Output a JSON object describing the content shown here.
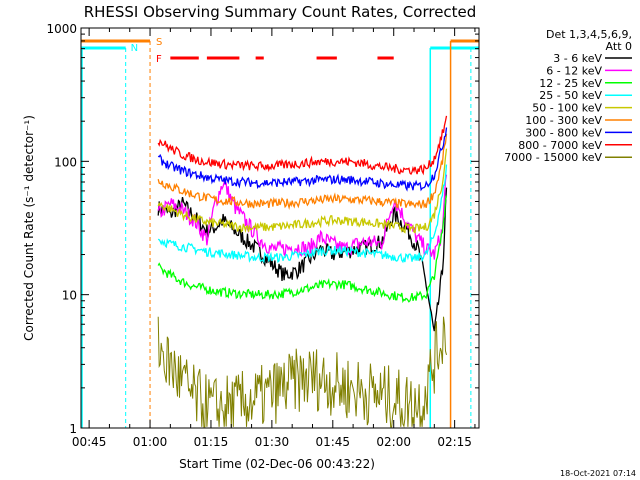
{
  "chart_data": {
    "type": "line",
    "title": "RHESSI Observing Summary Count Rates, Corrected",
    "xlabel": "Start Time (02-Dec-06 00:43:22)",
    "ylabel": "Corrected Count Rate (s⁻¹ detector⁻¹)",
    "ylog": true,
    "ylim": [
      1,
      1000
    ],
    "xlim": [
      "00:43",
      "02:21"
    ],
    "x_ticks": [
      "00:45",
      "01:00",
      "01:15",
      "01:30",
      "01:45",
      "02:00",
      "02:15"
    ],
    "y_ticks": [
      "1",
      "10",
      "100",
      "1000"
    ],
    "timestamp": "18-Oct-2021 07:14",
    "legend": {
      "header": [
        "Det 1,3,4,5,6,9,",
        "Att 0"
      ],
      "placement": "right"
    },
    "flags": [
      {
        "label": "S",
        "color": "#ff7f00"
      },
      {
        "label": "N",
        "color": "#00ffff"
      },
      {
        "label": "F",
        "color": "#ff0000"
      }
    ],
    "series": [
      {
        "name": "3 - 6 keV",
        "color": "#000000",
        "x": [
          "01:02",
          "01:05",
          "01:08",
          "01:11",
          "01:14",
          "01:16",
          "01:18",
          "01:21",
          "01:24",
          "01:27",
          "01:30",
          "01:33",
          "01:36",
          "01:39",
          "01:42",
          "01:45",
          "01:48",
          "01:51",
          "01:54",
          "01:57",
          "02:00",
          "02:03",
          "02:06",
          "02:08",
          "02:10",
          "02:12",
          "02:13"
        ],
        "y": [
          45,
          40,
          48,
          38,
          30,
          32,
          36,
          30,
          25,
          21,
          17,
          14,
          15,
          18,
          22,
          20,
          21,
          22,
          23,
          25,
          40,
          32,
          22,
          12,
          5,
          15,
          60
        ]
      },
      {
        "name": "6 - 12 keV",
        "color": "#ff00ff",
        "x": [
          "01:02",
          "01:05",
          "01:08",
          "01:11",
          "01:14",
          "01:16",
          "01:18",
          "01:21",
          "01:24",
          "01:27",
          "01:30",
          "01:33",
          "01:36",
          "01:39",
          "01:42",
          "01:45",
          "01:48",
          "01:51",
          "01:54",
          "01:57",
          "02:00",
          "02:03",
          "02:06",
          "02:08",
          "02:10",
          "02:12",
          "02:13"
        ],
        "y": [
          40,
          48,
          43,
          36,
          26,
          48,
          70,
          45,
          34,
          26,
          22,
          22,
          23,
          22,
          27,
          24,
          22,
          24,
          25,
          24,
          52,
          36,
          26,
          22,
          20,
          30,
          90
        ]
      },
      {
        "name": "12 - 25 keV",
        "color": "#00ff00",
        "x": [
          "01:02",
          "01:05",
          "01:08",
          "01:11",
          "01:14",
          "01:17",
          "01:20",
          "01:23",
          "01:26",
          "01:29",
          "01:32",
          "01:35",
          "01:38",
          "01:41",
          "01:44",
          "01:47",
          "01:50",
          "01:53",
          "01:56",
          "01:59",
          "02:02",
          "02:05",
          "02:08",
          "02:10",
          "02:12",
          "02:13"
        ],
        "y": [
          16,
          14,
          12.5,
          11.5,
          11,
          10.5,
          10.3,
          10.1,
          10,
          10,
          10.1,
          10.5,
          11,
          11.5,
          12,
          12,
          11.6,
          11,
          10.5,
          10,
          9.6,
          9.5,
          10,
          14,
          30,
          60
        ]
      },
      {
        "name": "25 - 50 keV",
        "color": "#00ffff",
        "x": [
          "01:02",
          "01:05",
          "01:08",
          "01:11",
          "01:14",
          "01:17",
          "01:20",
          "01:23",
          "01:26",
          "01:29",
          "01:32",
          "01:35",
          "01:38",
          "01:41",
          "01:44",
          "01:47",
          "01:50",
          "01:53",
          "01:56",
          "01:59",
          "02:02",
          "02:05",
          "02:08",
          "02:10",
          "02:12",
          "02:13"
        ],
        "y": [
          26,
          24,
          23,
          22,
          21,
          20.5,
          20,
          19.5,
          19,
          19,
          19,
          19.5,
          20,
          21,
          21.5,
          21.5,
          21,
          20.5,
          20,
          19.5,
          19,
          18.5,
          20,
          28,
          55,
          90
        ]
      },
      {
        "name": "50 - 100 keV",
        "color": "#c8c800",
        "x": [
          "01:02",
          "01:05",
          "01:08",
          "01:11",
          "01:14",
          "01:17",
          "01:20",
          "01:23",
          "01:26",
          "01:29",
          "01:32",
          "01:35",
          "01:38",
          "01:41",
          "01:44",
          "01:47",
          "01:50",
          "01:53",
          "01:56",
          "01:59",
          "02:02",
          "02:05",
          "02:08",
          "02:10",
          "02:12",
          "02:13"
        ],
        "y": [
          48,
          44,
          40,
          37,
          35,
          34,
          33,
          32,
          32,
          32,
          32.5,
          33,
          34,
          35,
          36,
          36,
          35.5,
          35,
          34,
          33,
          32,
          31,
          32,
          40,
          70,
          120
        ]
      },
      {
        "name": "100 - 300 keV",
        "color": "#ff8000",
        "x": [
          "01:02",
          "01:05",
          "01:08",
          "01:11",
          "01:14",
          "01:17",
          "01:20",
          "01:23",
          "01:26",
          "01:29",
          "01:32",
          "01:35",
          "01:38",
          "01:41",
          "01:44",
          "01:47",
          "01:50",
          "01:53",
          "01:56",
          "01:59",
          "02:02",
          "02:05",
          "02:08",
          "02:10",
          "02:12",
          "02:13"
        ],
        "y": [
          72,
          65,
          60,
          56,
          53,
          51,
          50,
          49,
          48,
          48,
          48.5,
          49,
          50,
          51,
          52,
          52,
          51.5,
          51,
          50,
          49,
          48,
          47,
          48,
          58,
          100,
          160
        ]
      },
      {
        "name": "300 - 800 keV",
        "color": "#0000ff",
        "x": [
          "01:02",
          "01:05",
          "01:08",
          "01:11",
          "01:14",
          "01:17",
          "01:20",
          "01:23",
          "01:26",
          "01:29",
          "01:32",
          "01:35",
          "01:38",
          "01:41",
          "01:44",
          "01:47",
          "01:50",
          "01:53",
          "01:56",
          "01:59",
          "02:02",
          "02:05",
          "02:08",
          "02:10",
          "02:12",
          "02:13"
        ],
        "y": [
          105,
          92,
          85,
          80,
          76,
          73,
          71,
          70,
          69,
          69,
          69.5,
          70,
          71,
          72,
          73,
          73,
          72.5,
          71,
          69,
          67,
          66,
          65,
          66,
          80,
          130,
          180
        ]
      },
      {
        "name": "800 - 7000 keV",
        "color": "#ff0000",
        "x": [
          "01:02",
          "01:05",
          "01:08",
          "01:11",
          "01:14",
          "01:17",
          "01:20",
          "01:23",
          "01:26",
          "01:29",
          "01:32",
          "01:35",
          "01:38",
          "01:41",
          "01:44",
          "01:47",
          "01:50",
          "01:53",
          "01:56",
          "01:59",
          "02:02",
          "02:05",
          "02:08",
          "02:10",
          "02:12",
          "02:13"
        ],
        "y": [
          145,
          125,
          112,
          104,
          99,
          96,
          94,
          93,
          92,
          92,
          93,
          95,
          97,
          99,
          100,
          100,
          99,
          96,
          92,
          89,
          87,
          86,
          88,
          105,
          160,
          210
        ]
      },
      {
        "name": "7000 - 15000 keV",
        "color": "#808000",
        "x": [
          "01:02",
          "01:04",
          "01:06",
          "01:08",
          "01:10",
          "01:13",
          "01:16",
          "01:19",
          "01:22",
          "01:25",
          "01:28",
          "01:31",
          "01:34",
          "01:37",
          "01:40",
          "01:43",
          "01:46",
          "01:49",
          "01:52",
          "01:55",
          "01:58",
          "02:01",
          "02:04",
          "02:07",
          "02:09",
          "02:11",
          "02:13"
        ],
        "y": [
          4.2,
          3.2,
          2.7,
          2.2,
          1.8,
          1.5,
          1.4,
          1.45,
          1.5,
          1.6,
          1.7,
          1.9,
          2.1,
          2.3,
          2.4,
          2.3,
          2.1,
          2.0,
          1.9,
          1.8,
          1.7,
          1.6,
          1.5,
          1.6,
          2.5,
          4,
          6
        ]
      }
    ]
  }
}
